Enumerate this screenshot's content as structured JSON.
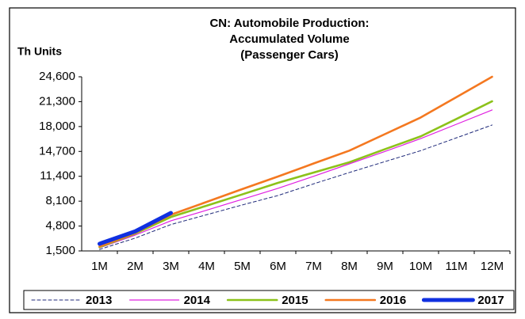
{
  "chart_data": {
    "type": "line",
    "title": [
      "CN: Automobile Production:",
      "Accumulated Volume",
      "(Passenger Cars)"
    ],
    "y_label": "Th Units",
    "categories": [
      "1M",
      "2M",
      "3M",
      "4M",
      "5M",
      "6M",
      "7M",
      "8M",
      "9M",
      "10M",
      "11M",
      "12M"
    ],
    "ylim": [
      1500,
      24600
    ],
    "yticks": [
      {
        "value": 1500,
        "label": "1,500"
      },
      {
        "value": 4800,
        "label": "4,800"
      },
      {
        "value": 8100,
        "label": "8,100"
      },
      {
        "value": 11400,
        "label": "11,400"
      },
      {
        "value": 14700,
        "label": "14,700"
      },
      {
        "value": 18000,
        "label": "18,000"
      },
      {
        "value": 21300,
        "label": "21,300"
      },
      {
        "value": 24600,
        "label": "24,600"
      }
    ],
    "grid": false,
    "legend": "bottom",
    "series": [
      {
        "name": "2013",
        "color": "#1f2a7a",
        "width": 1,
        "dash": "4 3",
        "values": [
          1700,
          3200,
          5000,
          6300,
          7600,
          8850,
          10400,
          11900,
          13350,
          14800,
          16500,
          18200
        ]
      },
      {
        "name": "2014",
        "color": "#e020e0",
        "width": 1.2,
        "dash": "",
        "values": [
          1900,
          3600,
          5500,
          6900,
          8350,
          9800,
          11400,
          13050,
          14700,
          16400,
          18300,
          20200
        ]
      },
      {
        "name": "2015",
        "color": "#8cc21a",
        "width": 2.6,
        "dash": "",
        "values": [
          2000,
          3800,
          6000,
          7500,
          9000,
          10530,
          11900,
          13260,
          15000,
          16700,
          19000,
          21350
        ]
      },
      {
        "name": "2016",
        "color": "#f47820",
        "width": 2.6,
        "dash": "",
        "values": [
          2100,
          3900,
          6300,
          8000,
          9700,
          11370,
          13100,
          14800,
          17000,
          19200,
          21900,
          24600
        ]
      },
      {
        "name": "2017",
        "color": "#1030e0",
        "width": 5,
        "dash": "",
        "values": [
          2450,
          4100,
          6540,
          null,
          null,
          null,
          null,
          null,
          null,
          null,
          null,
          null
        ]
      }
    ]
  }
}
